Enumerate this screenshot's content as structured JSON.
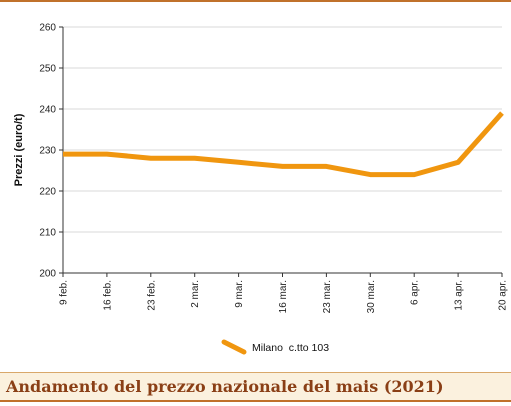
{
  "caption": "Andamento del prezzo nazionale del mais (2021)",
  "colors": {
    "line": "#f0960f",
    "accent": "#c0712b",
    "caption_text": "#8a3f16",
    "caption_bg": "#fbf1de",
    "grid": "#d9d9d9"
  },
  "chart_data": {
    "type": "line",
    "title": "",
    "xlabel": "",
    "ylabel": "Prezzi (euro/t)",
    "categories": [
      "9 feb.",
      "16 feb.",
      "23 feb.",
      "2 mar.",
      "9 mar.",
      "16 mar.",
      "23 mar.",
      "30 mar.",
      "6 apr.",
      "13 apr.",
      "20 apr."
    ],
    "series": [
      {
        "name": "Milano  c.tto 103",
        "values": [
          229,
          229,
          228,
          228,
          227,
          226,
          226,
          224,
          224,
          227,
          239
        ]
      }
    ],
    "ylim": [
      200,
      260
    ],
    "yticks": [
      200,
      210,
      220,
      230,
      240,
      250,
      260
    ],
    "grid": "horizontal",
    "legend": "bottom-center"
  }
}
